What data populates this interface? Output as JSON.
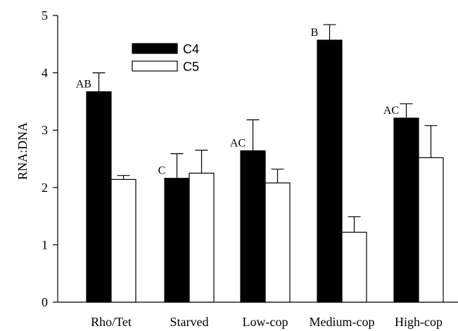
{
  "chart_data": {
    "type": "bar",
    "categories": [
      "Rho/Tet",
      "Starved",
      "Low-cop",
      "Medium-cop",
      "High-cop"
    ],
    "series": [
      {
        "name": "C4",
        "color": "#000000",
        "values": [
          3.67,
          2.16,
          2.64,
          4.57,
          3.21
        ],
        "errors": [
          0.33,
          0.43,
          0.54,
          0.27,
          0.25
        ]
      },
      {
        "name": "C5",
        "color": "#ffffff",
        "values": [
          2.14,
          2.25,
          2.08,
          1.22,
          2.52
        ],
        "errors": [
          0.07,
          0.4,
          0.24,
          0.27,
          0.56
        ]
      }
    ],
    "annotations": [
      "AB",
      "C",
      "AC",
      "B",
      "AC"
    ],
    "title": "",
    "xlabel": "",
    "ylabel": "RNA:DNA",
    "ylim": [
      0,
      5
    ],
    "yticks": [
      0,
      1,
      2,
      3,
      4,
      5
    ],
    "legend_position": "top-left",
    "grid": false
  }
}
